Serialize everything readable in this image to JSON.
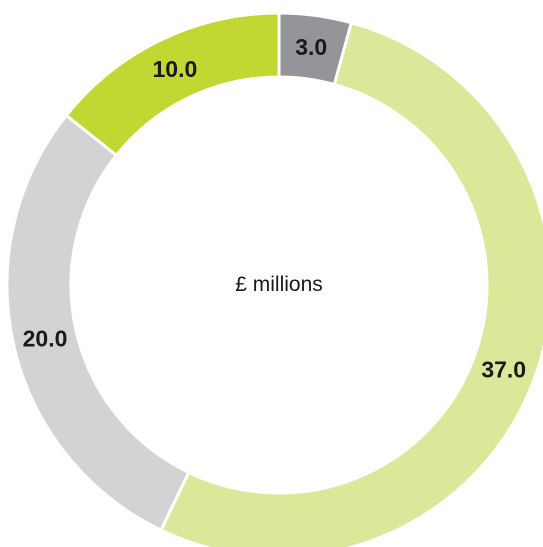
{
  "chart_data": {
    "type": "pie",
    "variant": "donut",
    "center_label": "£ millions",
    "categories": [
      "",
      "",
      "",
      ""
    ],
    "values": [
      3.0,
      37.0,
      20.0,
      10.0
    ],
    "value_labels": [
      "3.0",
      "37.0",
      "20.0",
      "10.0"
    ],
    "colors": [
      "#939598",
      "#dde79a",
      "#d1d3d4",
      "#c2d731"
    ],
    "start_angle": "12 o'clock",
    "direction": "clockwise",
    "legend": "none"
  }
}
